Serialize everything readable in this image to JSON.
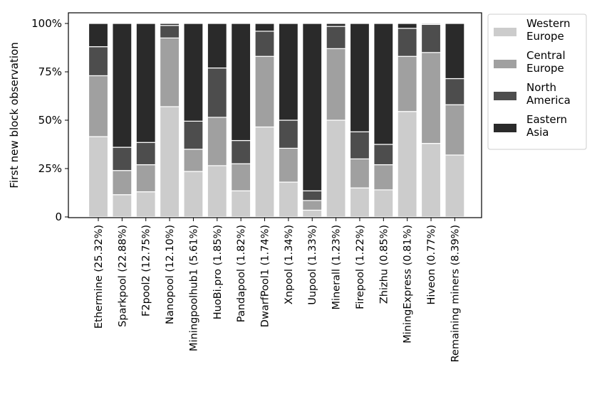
{
  "chart_data": {
    "type": "bar",
    "stacked": true,
    "ylabel": "First new block observation",
    "xlabel": "",
    "ylim": [
      0,
      100
    ],
    "yticks": [
      0,
      25,
      50,
      75,
      100
    ],
    "ytick_labels": [
      "0",
      "25%",
      "50%",
      "75%",
      "100%"
    ],
    "legend_position": "outside-top-right",
    "categories": [
      "Ethermine (25.32%)",
      "Sparkpool (22.88%)",
      "F2pool2 (12.75%)",
      "Nanopool (12.10%)",
      "Miningpoolhub1 (5.61%)",
      "HuoBi.pro (1.85%)",
      "Pandapool (1.82%)",
      "DwarfPool1 (1.74%)",
      "Xnpool (1.34%)",
      "Uupool (1.33%)",
      "Minerall (1.23%)",
      "Firepool (1.22%)",
      "Zhizhu (0.85%)",
      "MiningExpress (0.81%)",
      "Hiveon (0.77%)",
      "Remaining miners (8.39%)"
    ],
    "series": [
      {
        "name": "Western Europe",
        "color": "#cccccc",
        "values": [
          41.5,
          11.5,
          13,
          57,
          23.5,
          26.5,
          13.5,
          46.5,
          18,
          3.5,
          50,
          15,
          14,
          54.5,
          38,
          32
        ]
      },
      {
        "name": "Central Europe",
        "color": "#a0a0a0",
        "values": [
          31.5,
          12.5,
          14,
          35.5,
          11.5,
          25,
          14,
          36.5,
          17.5,
          5,
          37,
          15,
          13,
          28.5,
          47,
          26
        ]
      },
      {
        "name": "North America",
        "color": "#4d4d4d",
        "values": [
          15,
          12,
          11.5,
          6.5,
          14.5,
          25.5,
          12,
          13,
          14.5,
          5,
          11.5,
          14,
          10.5,
          14.5,
          14.5,
          13.5
        ]
      },
      {
        "name": "Eastern Asia",
        "color": "#2a2a2a",
        "values": [
          12,
          64,
          61.5,
          1,
          50.5,
          23,
          60.5,
          4,
          50,
          86.5,
          1.5,
          56,
          62.5,
          2.5,
          0.5,
          28.5
        ]
      }
    ],
    "legend": [
      {
        "line1": "Western",
        "line2": "Europe"
      },
      {
        "line1": "Central",
        "line2": "Europe"
      },
      {
        "line1": "North",
        "line2": "America"
      },
      {
        "line1": "Eastern",
        "line2": "Asia"
      }
    ]
  }
}
